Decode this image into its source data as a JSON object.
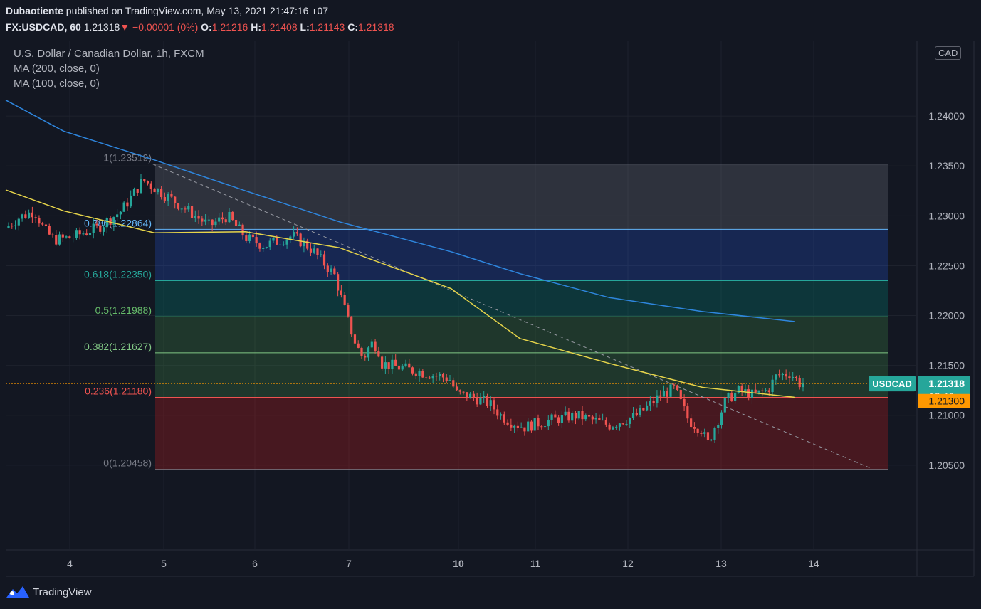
{
  "header": {
    "publisher": "Dubaotiente",
    "published_text": "published on TradingView.com, May 13, 2021 21:47:16 +07",
    "symbol": "FX:USDCAD, 60",
    "last": "1.21318",
    "change": "−0.00001 (0%)",
    "o_label": "O:",
    "o": "1.21216",
    "h_label": "H:",
    "h": "1.21408",
    "l_label": "L:",
    "l": "1.21143",
    "c_label": "C:",
    "c": "1.21318"
  },
  "legend": {
    "title": "U.S. Dollar / Canadian Dollar, 1h, FXCM",
    "ma200": "MA (200, close, 0)",
    "ma100": "MA (100, close, 0)"
  },
  "footer": {
    "brand": "TradingView"
  },
  "colors": {
    "background": "#131722",
    "up": "#26a69a",
    "down": "#ef5350",
    "ma200": "#2e86de",
    "ma100": "#e6d44a",
    "price_line": "#ff9800"
  },
  "chart_data": {
    "type": "candlestick",
    "symbol": "USDCAD",
    "timeframe": "1h",
    "currency": "CAD",
    "x_tick_labels": [
      "4",
      "5",
      "6",
      "7",
      "10",
      "11",
      "12",
      "13",
      "14"
    ],
    "y_tick_labels": [
      "1.24000",
      "1.23500",
      "1.23000",
      "1.22500",
      "1.22000",
      "1.21500",
      "1.21000",
      "1.20500"
    ],
    "ylim": [
      1.1965,
      1.2475
    ],
    "price_badge": {
      "label": "USDCAD",
      "value": "1.21318",
      "countdown": "12:46"
    },
    "ma100_badge": "1.21300",
    "fibonacci": [
      {
        "ratio": "1",
        "price": 1.23519,
        "label": "1(1.23519)",
        "color": "#787b86"
      },
      {
        "ratio": "0.786",
        "price": 1.22864,
        "label": "0.786(1.22864)",
        "color": "#64b5f6"
      },
      {
        "ratio": "0.618",
        "price": 1.2235,
        "label": "0.618(1.22350)",
        "color": "#26a69a"
      },
      {
        "ratio": "0.5",
        "price": 1.21988,
        "label": "0.5(1.21988)",
        "color": "#66bb6a"
      },
      {
        "ratio": "0.382",
        "price": 1.21627,
        "label": "0.382(1.21627)",
        "color": "#81c784"
      },
      {
        "ratio": "0.236",
        "price": 1.2118,
        "label": "0.236(1.21180)",
        "color": "#ef5350"
      },
      {
        "ratio": "0",
        "price": 1.20458,
        "label": "0(1.20458)",
        "color": "#787b86"
      }
    ],
    "ma200_points": [
      [
        3.0,
        1.2416
      ],
      [
        3.9,
        1.2385
      ],
      [
        4.9,
        1.2356
      ],
      [
        5.9,
        1.2325
      ],
      [
        6.9,
        1.2294
      ],
      [
        9.8,
        1.2264
      ],
      [
        10.8,
        1.2242
      ],
      [
        11.8,
        1.2218
      ],
      [
        12.8,
        1.2204
      ],
      [
        13.8,
        1.2194
      ]
    ],
    "ma100_points": [
      [
        3.0,
        1.2326
      ],
      [
        3.9,
        1.2305
      ],
      [
        4.9,
        1.2283
      ],
      [
        5.9,
        1.2284
      ],
      [
        6.9,
        1.2268
      ],
      [
        9.8,
        1.2227
      ],
      [
        10.8,
        1.2177
      ],
      [
        11.8,
        1.2152
      ],
      [
        12.8,
        1.2128
      ],
      [
        13.8,
        1.2118
      ]
    ],
    "trend_line": [
      [
        4.88,
        1.2352
      ],
      [
        14.55,
        1.2047
      ]
    ],
    "price_anchors": [
      [
        3.0,
        1.2288
      ],
      [
        3.2,
        1.2298
      ],
      [
        3.45,
        1.2305
      ],
      [
        3.6,
        1.2286
      ],
      [
        3.75,
        1.2276
      ],
      [
        4.0,
        1.2278
      ],
      [
        4.3,
        1.2288
      ],
      [
        4.55,
        1.2305
      ],
      [
        4.78,
        1.2336
      ],
      [
        4.95,
        1.2325
      ],
      [
        5.3,
        1.2303
      ],
      [
        5.5,
        1.229
      ],
      [
        5.7,
        1.23
      ],
      [
        5.9,
        1.2278
      ],
      [
        6.1,
        1.227
      ],
      [
        6.4,
        1.228
      ],
      [
        6.6,
        1.2267
      ],
      [
        6.85,
        1.224
      ],
      [
        7.0,
        1.2192
      ],
      [
        7.2,
        1.217
      ],
      [
        7.4,
        1.2157
      ],
      [
        7.6,
        1.2172
      ],
      [
        7.78,
        1.217
      ],
      [
        7.9,
        1.2152
      ],
      [
        9.75,
        1.2137
      ],
      [
        9.95,
        1.2122
      ],
      [
        10.2,
        1.2118
      ],
      [
        10.4,
        1.2112
      ],
      [
        10.55,
        1.21
      ],
      [
        10.65,
        1.2095
      ],
      [
        10.85,
        1.2088
      ],
      [
        11.15,
        1.2095
      ],
      [
        11.45,
        1.21
      ],
      [
        11.8,
        1.209
      ],
      [
        12.1,
        1.21
      ],
      [
        12.35,
        1.212
      ],
      [
        12.5,
        1.2127
      ],
      [
        12.65,
        1.2095
      ],
      [
        12.8,
        1.2085
      ],
      [
        12.85,
        1.207
      ],
      [
        13.05,
        1.2115
      ],
      [
        13.2,
        1.2125
      ],
      [
        13.35,
        1.212
      ],
      [
        13.5,
        1.2125
      ],
      [
        13.6,
        1.214
      ],
      [
        13.75,
        1.2142
      ],
      [
        13.85,
        1.2132
      ]
    ]
  }
}
